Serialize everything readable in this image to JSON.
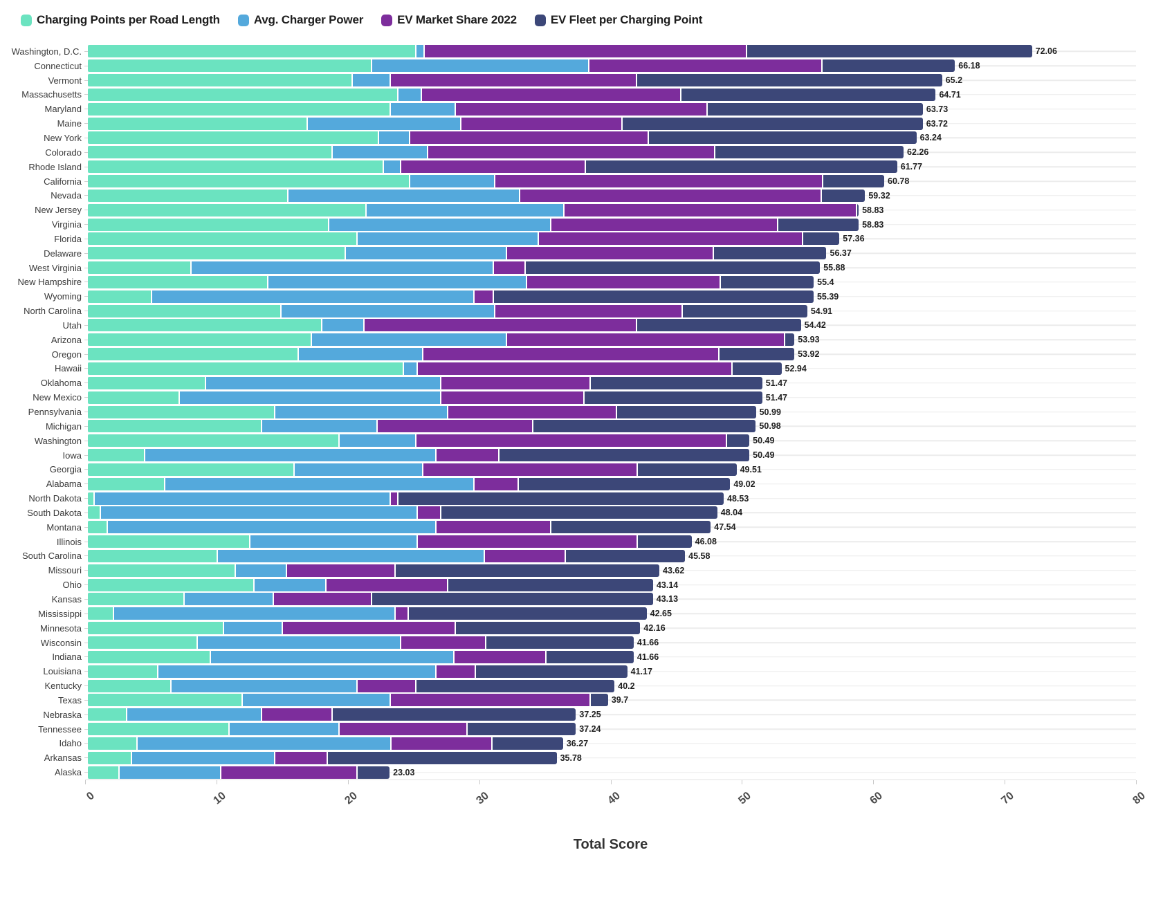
{
  "legend_title": "",
  "chart_data": {
    "type": "bar",
    "orientation": "horizontal",
    "stacked": true,
    "grid": "horizontal-row-lines",
    "legend_position": "top-left",
    "xlabel": "Total Score",
    "xlim": [
      0,
      80
    ],
    "xticks": [
      0,
      10,
      20,
      30,
      40,
      50,
      60,
      70,
      80
    ],
    "categories": [
      "Washington, D.C.",
      "Connecticut",
      "Vermont",
      "Massachusetts",
      "Maryland",
      "Maine",
      "New York",
      "Colorado",
      "Rhode Island",
      "California",
      "Nevada",
      "New Jersey",
      "Virginia",
      "Florida",
      "Delaware",
      "West Virginia",
      "New Hampshire",
      "Wyoming",
      "North Carolina",
      "Utah",
      "Arizona",
      "Oregon",
      "Hawaii",
      "Oklahoma",
      "New Mexico",
      "Pennsylvania",
      "Michigan",
      "Washington",
      "Iowa",
      "Georgia",
      "Alabama",
      "North Dakota",
      "South Dakota",
      "Montana",
      "Illinois",
      "South Carolina",
      "Missouri",
      "Ohio",
      "Kansas",
      "Mississippi",
      "Minnesota",
      "Wisconsin",
      "Indiana",
      "Louisiana",
      "Kentucky",
      "Texas",
      "Nebraska",
      "Tennessee",
      "Idaho",
      "Arkansas",
      "Alaska"
    ],
    "totals": [
      "72.06",
      "66.18",
      "65.2",
      "64.71",
      "63.73",
      "63.72",
      "63.24",
      "62.26",
      "61.77",
      "60.78",
      "59.32",
      "58.83",
      "58.83",
      "57.36",
      "56.37",
      "55.88",
      "55.4",
      "55.39",
      "54.91",
      "54.42",
      "53.93",
      "53.92",
      "52.94",
      "51.47",
      "51.47",
      "50.99",
      "50.98",
      "50.49",
      "50.49",
      "49.51",
      "49.02",
      "48.53",
      "48.04",
      "47.54",
      "46.08",
      "45.58",
      "43.62",
      "43.14",
      "43.13",
      "42.65",
      "42.16",
      "41.66",
      "41.66",
      "41.17",
      "40.2",
      "39.7",
      "37.25",
      "37.24",
      "36.27",
      "35.78",
      "23.03"
    ],
    "series": [
      {
        "name": "Charging Points per Road Length",
        "color": "#6BE3C0",
        "values": [
          25.0,
          21.6,
          20.1,
          23.6,
          23.0,
          16.7,
          22.1,
          18.6,
          22.5,
          24.5,
          15.2,
          21.2,
          18.3,
          20.5,
          19.6,
          7.8,
          13.7,
          4.8,
          14.7,
          17.8,
          17.0,
          16.0,
          24.0,
          8.9,
          6.9,
          14.2,
          13.2,
          19.1,
          4.3,
          15.7,
          5.8,
          0.4,
          0.9,
          1.4,
          12.3,
          9.8,
          11.2,
          12.6,
          7.3,
          1.9,
          10.3,
          8.3,
          9.3,
          5.3,
          6.3,
          11.7,
          2.9,
          10.7,
          3.7,
          3.3,
          2.3
        ]
      },
      {
        "name": "Avg. Charger Power",
        "color": "#54A9DC",
        "values": [
          0.6,
          16.6,
          2.9,
          1.8,
          5.0,
          11.7,
          2.4,
          7.3,
          1.3,
          6.5,
          17.7,
          15.1,
          17.0,
          13.8,
          12.3,
          23.1,
          19.7,
          24.6,
          16.3,
          3.2,
          14.9,
          9.5,
          1.1,
          18.0,
          20.0,
          13.2,
          8.8,
          5.9,
          22.2,
          9.8,
          23.6,
          22.6,
          24.2,
          25.1,
          12.8,
          20.4,
          3.9,
          5.5,
          6.8,
          21.5,
          4.5,
          15.5,
          18.6,
          21.2,
          14.2,
          11.3,
          10.3,
          8.4,
          19.4,
          10.9,
          7.8
        ]
      },
      {
        "name": "EV Market Share 2022",
        "color": "#7D2D9C",
        "values": [
          24.6,
          17.8,
          18.8,
          19.8,
          19.2,
          12.3,
          18.2,
          21.9,
          14.1,
          25.0,
          23.0,
          22.3,
          17.3,
          20.2,
          15.8,
          2.4,
          14.8,
          1.5,
          14.3,
          20.8,
          21.2,
          22.6,
          24.0,
          11.4,
          10.9,
          12.9,
          11.9,
          23.7,
          4.8,
          16.4,
          3.4,
          0.6,
          1.8,
          8.8,
          16.8,
          6.2,
          8.3,
          9.3,
          7.5,
          1.0,
          13.2,
          6.5,
          7.0,
          3.0,
          4.5,
          15.3,
          5.4,
          9.8,
          7.7,
          4.0,
          10.4
        ]
      },
      {
        "name": "EV Fleet per Charging Point",
        "color": "#3C4778",
        "values": [
          21.86,
          10.18,
          23.4,
          19.51,
          16.53,
          23.02,
          20.54,
          14.46,
          23.87,
          4.78,
          3.42,
          0.23,
          6.23,
          2.86,
          8.67,
          22.58,
          7.2,
          24.49,
          9.61,
          12.62,
          0.83,
          5.82,
          3.84,
          13.17,
          13.67,
          10.69,
          17.08,
          1.79,
          19.19,
          7.61,
          16.22,
          24.93,
          21.14,
          12.24,
          4.18,
          9.18,
          20.22,
          15.74,
          21.53,
          18.25,
          14.16,
          11.36,
          6.76,
          11.67,
          15.2,
          1.4,
          18.65,
          8.34,
          5.47,
          17.58,
          2.53
        ]
      }
    ]
  },
  "colors": {
    "background": "#ffffff",
    "gridline": "#ececec",
    "axis_line": "#e2e2e2",
    "tick_label": "#4a4a4a",
    "row_label": "#3a3a3a",
    "total_label": "#1f1f1f"
  }
}
